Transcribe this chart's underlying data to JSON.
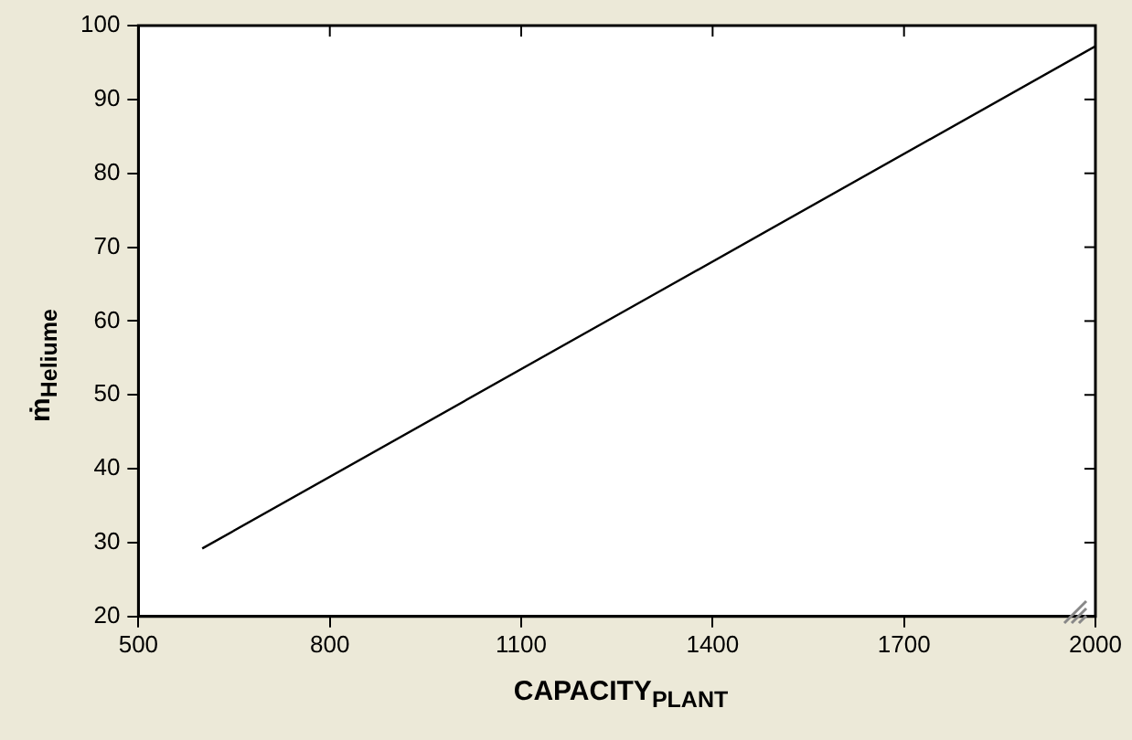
{
  "chart_data": {
    "type": "line",
    "xlabel": "CAPACITY$_{PLANT}$",
    "ylabel": "ṁ$_{Heliume}$",
    "x": [
      600,
      1300,
      2000
    ],
    "series": [
      {
        "color": "#000000",
        "values": [
          29.2,
          63.2,
          97.2
        ]
      }
    ],
    "xlim": [
      500,
      2000
    ],
    "xticks": [
      500,
      800,
      1100,
      1400,
      1700,
      2000
    ],
    "ylim": [
      20,
      100
    ],
    "yticks": [
      20,
      30,
      40,
      50,
      60,
      70,
      80,
      90,
      100
    ],
    "grid": false,
    "legend": false,
    "marker": "none",
    "line_style": "solid"
  }
}
